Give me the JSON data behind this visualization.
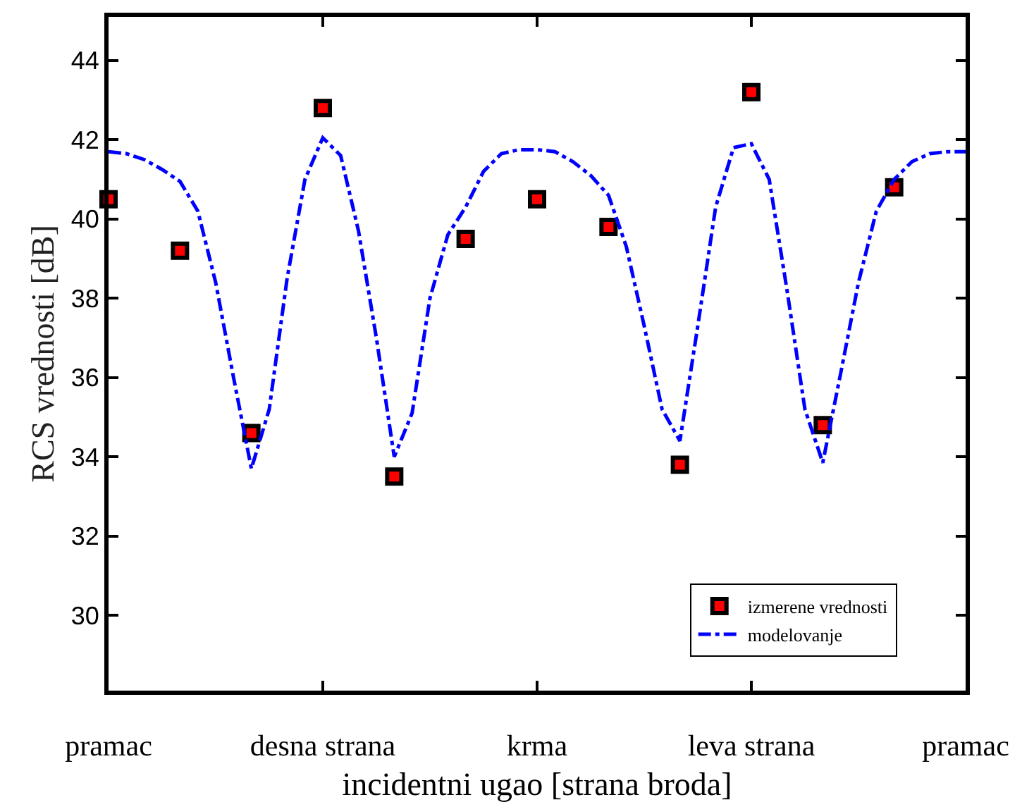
{
  "chart_data": {
    "type": "scatter",
    "xlabel": "incidentni ugao [strana broda]",
    "ylabel": "RCS vrednosti [dB]",
    "categories": [
      "pramac",
      null,
      null,
      null,
      null,
      null,
      null,
      null,
      null,
      null,
      null,
      null,
      "desna strana",
      null,
      null,
      null,
      null,
      null,
      null,
      null,
      null,
      null,
      null,
      null,
      "krma",
      null,
      null,
      null,
      null,
      null,
      null,
      null,
      null,
      null,
      null,
      null,
      "leva strana",
      null,
      null,
      null,
      null,
      null,
      null,
      null,
      null,
      null,
      null,
      null,
      "pramac"
    ],
    "ylim": [
      28.1,
      45.1
    ],
    "yticks": [
      30,
      32,
      34,
      36,
      38,
      40,
      42,
      44
    ],
    "grid": false,
    "legend": "bottom right",
    "series": [
      {
        "name": "izmerene vrednosti",
        "marker": "square",
        "color": "#ff0000",
        "values": [
          40.5,
          null,
          null,
          null,
          39.2,
          null,
          null,
          null,
          34.6,
          null,
          null,
          null,
          42.8,
          null,
          null,
          null,
          33.5,
          null,
          null,
          null,
          39.5,
          null,
          null,
          null,
          40.5,
          null,
          null,
          null,
          39.8,
          null,
          null,
          null,
          33.8,
          null,
          null,
          null,
          43.2,
          null,
          null,
          null,
          34.8,
          null,
          null,
          null,
          40.8,
          null,
          null,
          null,
          null
        ]
      },
      {
        "name": "modelovanje",
        "type": "line",
        "marker": "none",
        "line_style": "dashdot",
        "color": "#0000ff",
        "values": [
          41.7,
          41.65,
          41.5,
          41.25,
          40.95,
          40.2,
          38.4,
          36.0,
          33.7,
          35.2,
          38.5,
          41.0,
          42.05,
          41.6,
          39.7,
          37.0,
          34.0,
          35.1,
          38.0,
          39.6,
          40.3,
          41.2,
          41.65,
          41.75,
          41.75,
          41.7,
          41.45,
          41.1,
          40.6,
          39.3,
          37.3,
          35.2,
          34.4,
          37.3,
          40.3,
          41.8,
          41.9,
          41.0,
          38.2,
          35.2,
          33.85,
          36.1,
          38.4,
          40.2,
          41.0,
          41.45,
          41.65,
          41.7,
          41.7
        ]
      }
    ]
  }
}
